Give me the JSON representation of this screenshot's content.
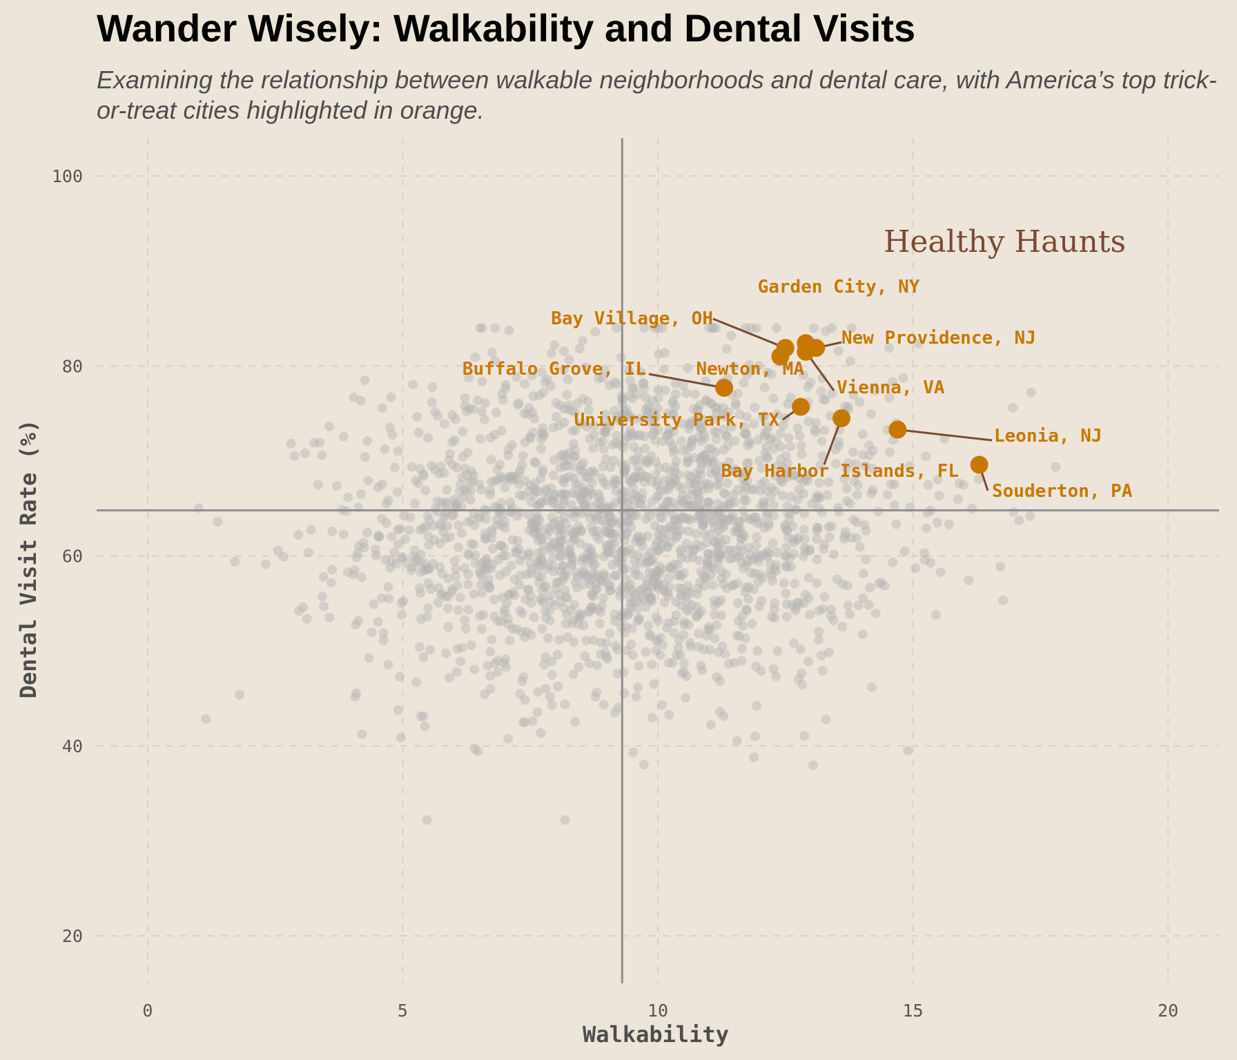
{
  "title": "Wander Wisely: Walkability and Dental Visits",
  "subtitle": "Examining the relationship between walkable neighborhoods and dental care, with America’s top trick-or-treat cities highlighted in orange.",
  "colors": {
    "background": "#ede5d9",
    "highlight": "#c77800",
    "leader": "#7a4a34",
    "points": "#b4b4b4",
    "reference_line": "#8f8f8f",
    "grid": "#d9d0c3"
  },
  "chart_data": {
    "type": "scatter",
    "xlabel": "Walkability",
    "ylabel": "Dental Visit Rate (%)",
    "xlim": [
      -1,
      21
    ],
    "ylim": [
      15,
      104
    ],
    "xticks": [
      0,
      5,
      10,
      15,
      20
    ],
    "yticks": [
      20,
      40,
      60,
      80,
      100
    ],
    "grid": true,
    "reference_lines": {
      "x": 9.3,
      "y": 64.8
    },
    "quadrant_label": {
      "text": "Healthy Haunts",
      "x": 16.8,
      "y": 92
    },
    "background_points": {
      "count": 2000,
      "x_mean": 9.5,
      "x_sd": 2.6,
      "x_range": [
        1.0,
        17.8
      ],
      "y_mean": 63.5,
      "y_sd": 8.8,
      "y_range": [
        32.2,
        84.0
      ]
    },
    "highlighted": [
      {
        "name": "Garden City, NY",
        "x": 12.9,
        "y": 82.4
      },
      {
        "name": "Bay Village, OH",
        "x": 12.5,
        "y": 81.9
      },
      {
        "name": "New Providence, NJ",
        "x": 13.1,
        "y": 81.9
      },
      {
        "name": "Vienna, VA",
        "x": 12.9,
        "y": 81.5
      },
      {
        "name": "Newton, MA",
        "x": 12.4,
        "y": 81.0
      },
      {
        "name": "Buffalo Grove, IL",
        "x": 11.3,
        "y": 77.7
      },
      {
        "name": "University Park, TX",
        "x": 12.8,
        "y": 75.7
      },
      {
        "name": "Bay Harbor Islands, FL",
        "x": 13.6,
        "y": 74.5
      },
      {
        "name": "Leonia, NJ",
        "x": 14.7,
        "y": 73.3
      },
      {
        "name": "Souderton, PA",
        "x": 16.3,
        "y": 69.6
      }
    ]
  }
}
